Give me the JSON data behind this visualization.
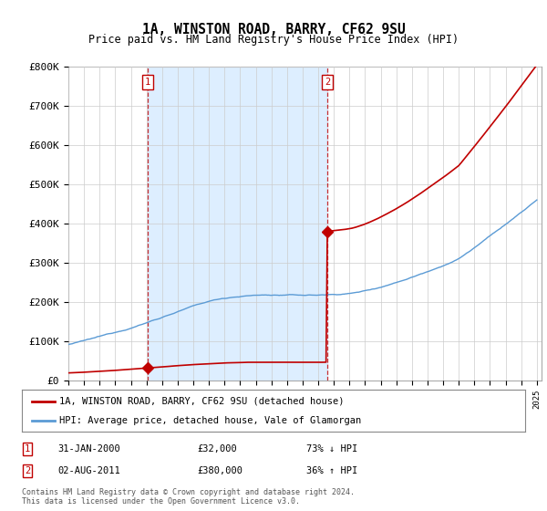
{
  "title": "1A, WINSTON ROAD, BARRY, CF62 9SU",
  "subtitle": "Price paid vs. HM Land Registry's House Price Index (HPI)",
  "ylim": [
    0,
    800000
  ],
  "yticks": [
    0,
    100000,
    200000,
    300000,
    400000,
    500000,
    600000,
    700000,
    800000
  ],
  "ytick_labels": [
    "£0",
    "£100K",
    "£200K",
    "£300K",
    "£400K",
    "£500K",
    "£600K",
    "£700K",
    "£800K"
  ],
  "sale1_date": 2000.08,
  "sale1_price": 32000,
  "sale1_label": "1",
  "sale2_date": 2011.58,
  "sale2_price": 380000,
  "sale2_label": "2",
  "hpi_color": "#5b9bd5",
  "price_color": "#c00000",
  "shade_color": "#ddeeff",
  "legend_house_label": "1A, WINSTON ROAD, BARRY, CF62 9SU (detached house)",
  "legend_hpi_label": "HPI: Average price, detached house, Vale of Glamorgan",
  "footer": "Contains HM Land Registry data © Crown copyright and database right 2024.\nThis data is licensed under the Open Government Licence v3.0.",
  "background_color": "#ffffff",
  "grid_color": "#cccccc"
}
